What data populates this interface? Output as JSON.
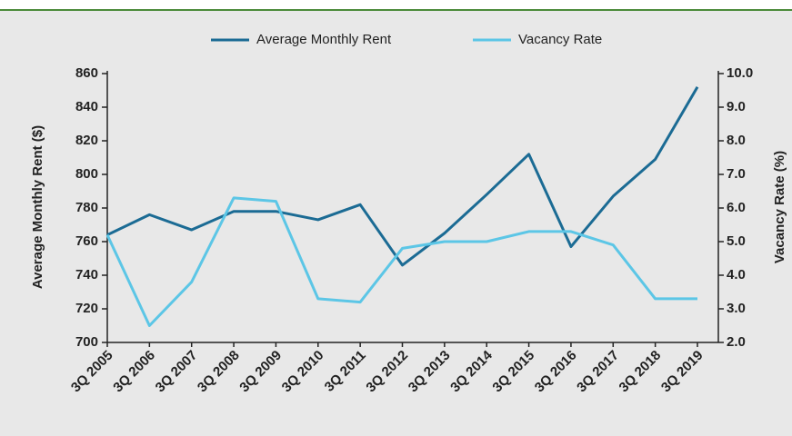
{
  "chart_data": {
    "type": "line",
    "categories": [
      "3Q 2005",
      "3Q 2006",
      "3Q 2007",
      "3Q 2008",
      "3Q 2009",
      "3Q 2010",
      "3Q 2011",
      "3Q 2012",
      "3Q 2013",
      "3Q 2014",
      "3Q 2015",
      "3Q 2016",
      "3Q 2017",
      "3Q 2018",
      "3Q 2019"
    ],
    "series": [
      {
        "name": "Average Monthly Rent",
        "color": "#1b6b94",
        "values": [
          764,
          776,
          767,
          778,
          778,
          773,
          782,
          746,
          765,
          788,
          812,
          757,
          787,
          809,
          852
        ]
      },
      {
        "name": "Vacancy Rate",
        "color": "#5cc6e6",
        "axis": "y2",
        "values": [
          5.2,
          2.5,
          3.8,
          6.3,
          6.2,
          3.3,
          3.2,
          4.8,
          5.0,
          5.0,
          5.3,
          5.3,
          4.9,
          3.3,
          3.3
        ]
      }
    ],
    "ylabel": "Average Monthly Rent ($)",
    "y2label": "Vacancy Rate  (%)",
    "ylim": [
      700,
      860
    ],
    "yticks": [
      700,
      720,
      740,
      760,
      780,
      800,
      820,
      840,
      860
    ],
    "y2lim": [
      2,
      10
    ],
    "y2ticks": [
      {
        "value": 2,
        "label": "2.0"
      },
      {
        "value": 3,
        "label": "3.0"
      },
      {
        "value": 4,
        "label": "4.0"
      },
      {
        "value": 5,
        "label": "5.0"
      },
      {
        "value": 6,
        "label": "6.0"
      },
      {
        "value": 7,
        "label": "7.0"
      },
      {
        "value": 8,
        "label": "8.0"
      },
      {
        "value": 9,
        "label": "9.0"
      },
      {
        "value": 10,
        "label": "10.0"
      }
    ],
    "legend": "top"
  }
}
